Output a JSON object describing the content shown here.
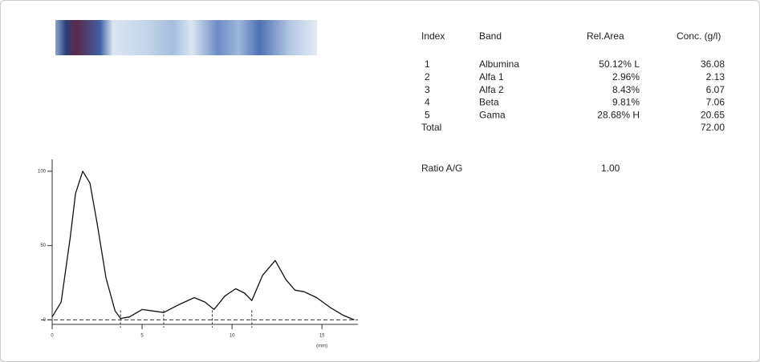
{
  "table": {
    "header": [
      "Index",
      "Band",
      "Rel.Area",
      "Conc. (g/l)"
    ],
    "rows": [
      [
        "1",
        "Albumina",
        "50.12% L",
        "36.08"
      ],
      [
        "2",
        "Alfa 1",
        "2.96%",
        "2.13"
      ],
      [
        "3",
        "Alfa 2",
        "8.43%",
        "6.07"
      ],
      [
        "4",
        "Beta",
        "9.81%",
        "7.06"
      ],
      [
        "5",
        "Gama",
        "28.68% H",
        "20.65"
      ]
    ],
    "total": [
      "Total",
      "72.00"
    ],
    "ratio": [
      "Ratio A/G",
      "1.00"
    ]
  },
  "chart_data": {
    "type": "line",
    "x": [
      0,
      0.5,
      1,
      1.3,
      1.7,
      2.1,
      2.5,
      3,
      3.5,
      3.8,
      4.3,
      5,
      5.6,
      6.2,
      7,
      7.9,
      8.5,
      9,
      9.6,
      10.2,
      10.7,
      11.1,
      11.7,
      12.4,
      13,
      13.5,
      14,
      14.7,
      15.5,
      16.2,
      16.8
    ],
    "values": [
      2,
      12,
      55,
      85,
      100,
      92,
      65,
      28,
      6,
      1,
      2,
      7,
      6,
      5,
      10,
      15,
      12,
      7,
      16,
      21,
      18,
      13,
      30,
      40,
      27,
      20,
      19,
      15,
      8,
      3,
      0
    ],
    "xlim": [
      0,
      17
    ],
    "ylim": [
      -3,
      108
    ],
    "xticks": [
      0,
      5,
      10,
      15
    ],
    "yticks": [
      0,
      50,
      100
    ],
    "x_unit": "(mm)",
    "dividers": [
      3.8,
      6.2,
      8.9,
      11.1
    ]
  }
}
